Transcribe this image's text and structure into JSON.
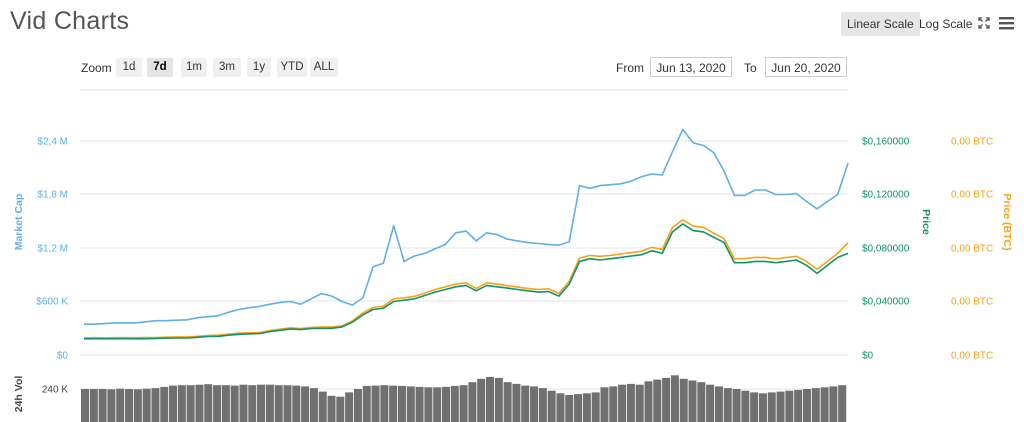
{
  "header": {
    "title": "Vid Charts",
    "linear_scale": "Linear Scale",
    "log_scale": "Log Scale",
    "fullscreen_icon": "fullscreen-icon",
    "menu_icon": "hamburger-menu-icon"
  },
  "zoom": {
    "label": "Zoom",
    "buttons": [
      "1d",
      "7d",
      "1m",
      "3m",
      "1y",
      "YTD",
      "ALL"
    ],
    "active": "7d"
  },
  "range": {
    "from_label": "From",
    "from_value": "Jun 13, 2020",
    "to_label": "To",
    "to_value": "Jun 20, 2020"
  },
  "colors": {
    "market_cap": "#5eb0e5",
    "price": "#10936b",
    "price_btc": "#f7a21b",
    "volume": "#707070",
    "grid": "#e6e6e6"
  },
  "chart_data": {
    "type": "line",
    "grid": true,
    "legend": "none",
    "left_axis": {
      "label": "Market Cap",
      "ticks": [
        "$0",
        "$600 K",
        "$1,2 M",
        "$1,8 M",
        "$2,4 M"
      ],
      "range": [
        0,
        2400000
      ]
    },
    "right_axis_price": {
      "label": "Price",
      "ticks": [
        "$0",
        "$0,040000",
        "$0,080000",
        "$0,120000",
        "$0,160000"
      ],
      "range": [
        0,
        0.16
      ]
    },
    "right_axis_btc": {
      "label": "Price (BTC)",
      "ticks": [
        "0,00 BTC",
        "0,00 BTC",
        "0,00 BTC",
        "0,00 BTC",
        "0,00 BTC"
      ]
    },
    "volume_axis": {
      "label": "24h Vol",
      "ticks": [
        "240 K"
      ]
    },
    "series": [
      {
        "key": "market_cap",
        "axis": "left",
        "values": [
          345000,
          345000,
          352000,
          360000,
          360000,
          360000,
          372000,
          385000,
          385000,
          390000,
          395000,
          418000,
          430000,
          440000,
          480000,
          510000,
          530000,
          545000,
          570000,
          590000,
          600000,
          570000,
          630000,
          690000,
          660000,
          600000,
          560000,
          640000,
          990000,
          1030000,
          1450000,
          1050000,
          1110000,
          1140000,
          1190000,
          1240000,
          1370000,
          1390000,
          1280000,
          1370000,
          1350000,
          1300000,
          1280000,
          1260000,
          1250000,
          1240000,
          1230000,
          1270000,
          1900000,
          1870000,
          1900000,
          1910000,
          1920000,
          1950000,
          2000000,
          2030000,
          2020000,
          2280000,
          2530000,
          2380000,
          2350000,
          2270000,
          2060000,
          1790000,
          1790000,
          1850000,
          1850000,
          1800000,
          1800000,
          1810000,
          1720000,
          1640000,
          1720000,
          1800000,
          2150000
        ]
      },
      {
        "key": "price",
        "axis": "right",
        "values": [
          0.0121,
          0.0122,
          0.0121,
          0.0122,
          0.0122,
          0.0121,
          0.0122,
          0.0124,
          0.0126,
          0.0127,
          0.0127,
          0.0132,
          0.0138,
          0.014,
          0.0148,
          0.0155,
          0.0158,
          0.016,
          0.0175,
          0.0185,
          0.0195,
          0.019,
          0.0198,
          0.02,
          0.02,
          0.021,
          0.0245,
          0.03,
          0.034,
          0.035,
          0.04,
          0.041,
          0.042,
          0.0445,
          0.047,
          0.049,
          0.051,
          0.052,
          0.048,
          0.052,
          0.051,
          0.05,
          0.049,
          0.048,
          0.047,
          0.0475,
          0.044,
          0.053,
          0.07,
          0.072,
          0.071,
          0.072,
          0.073,
          0.074,
          0.075,
          0.078,
          0.076,
          0.092,
          0.098,
          0.093,
          0.092,
          0.088,
          0.084,
          0.069,
          0.069,
          0.07,
          0.07,
          0.069,
          0.07,
          0.071,
          0.067,
          0.061,
          0.067,
          0.073,
          0.076
        ]
      },
      {
        "key": "price_btc",
        "axis": "right",
        "values": [
          0.0128,
          0.0129,
          0.0128,
          0.0129,
          0.013,
          0.0129,
          0.013,
          0.0131,
          0.0133,
          0.0135,
          0.0135,
          0.014,
          0.0146,
          0.0148,
          0.0156,
          0.0163,
          0.0166,
          0.0168,
          0.0183,
          0.0193,
          0.0203,
          0.0198,
          0.0206,
          0.021,
          0.021,
          0.0218,
          0.0255,
          0.0315,
          0.0355,
          0.0365,
          0.042,
          0.0428,
          0.0438,
          0.0463,
          0.049,
          0.051,
          0.053,
          0.054,
          0.0498,
          0.054,
          0.053,
          0.0518,
          0.0508,
          0.0498,
          0.049,
          0.0495,
          0.046,
          0.055,
          0.0725,
          0.0745,
          0.0738,
          0.0745,
          0.0755,
          0.0765,
          0.0775,
          0.0805,
          0.079,
          0.0955,
          0.101,
          0.0965,
          0.0955,
          0.091,
          0.087,
          0.072,
          0.072,
          0.073,
          0.073,
          0.0718,
          0.0728,
          0.0738,
          0.0698,
          0.064,
          0.07,
          0.076,
          0.084
        ]
      },
      {
        "key": "volume",
        "axis": "volume",
        "values": [
          240000,
          240000,
          240000,
          238000,
          242000,
          240000,
          238000,
          242000,
          245000,
          252000,
          260000,
          262000,
          262000,
          265000,
          268000,
          262000,
          262000,
          260000,
          265000,
          262000,
          265000,
          265000,
          262000,
          262000,
          260000,
          255000,
          245000,
          225000,
          200000,
          195000,
          220000,
          240000,
          258000,
          260000,
          262000,
          260000,
          258000,
          255000,
          252000,
          250000,
          250000,
          252000,
          258000,
          262000,
          280000,
          300000,
          310000,
          305000,
          280000,
          270000,
          260000,
          255000,
          245000,
          230000,
          215000,
          205000,
          210000,
          215000,
          220000,
          250000,
          255000,
          265000,
          270000,
          265000,
          285000,
          295000,
          305000,
          320000,
          300000,
          290000,
          280000,
          265000,
          255000,
          245000,
          240000,
          230000,
          220000,
          215000,
          220000,
          225000,
          230000,
          235000,
          240000,
          245000,
          250000,
          255000,
          262000
        ]
      }
    ]
  }
}
